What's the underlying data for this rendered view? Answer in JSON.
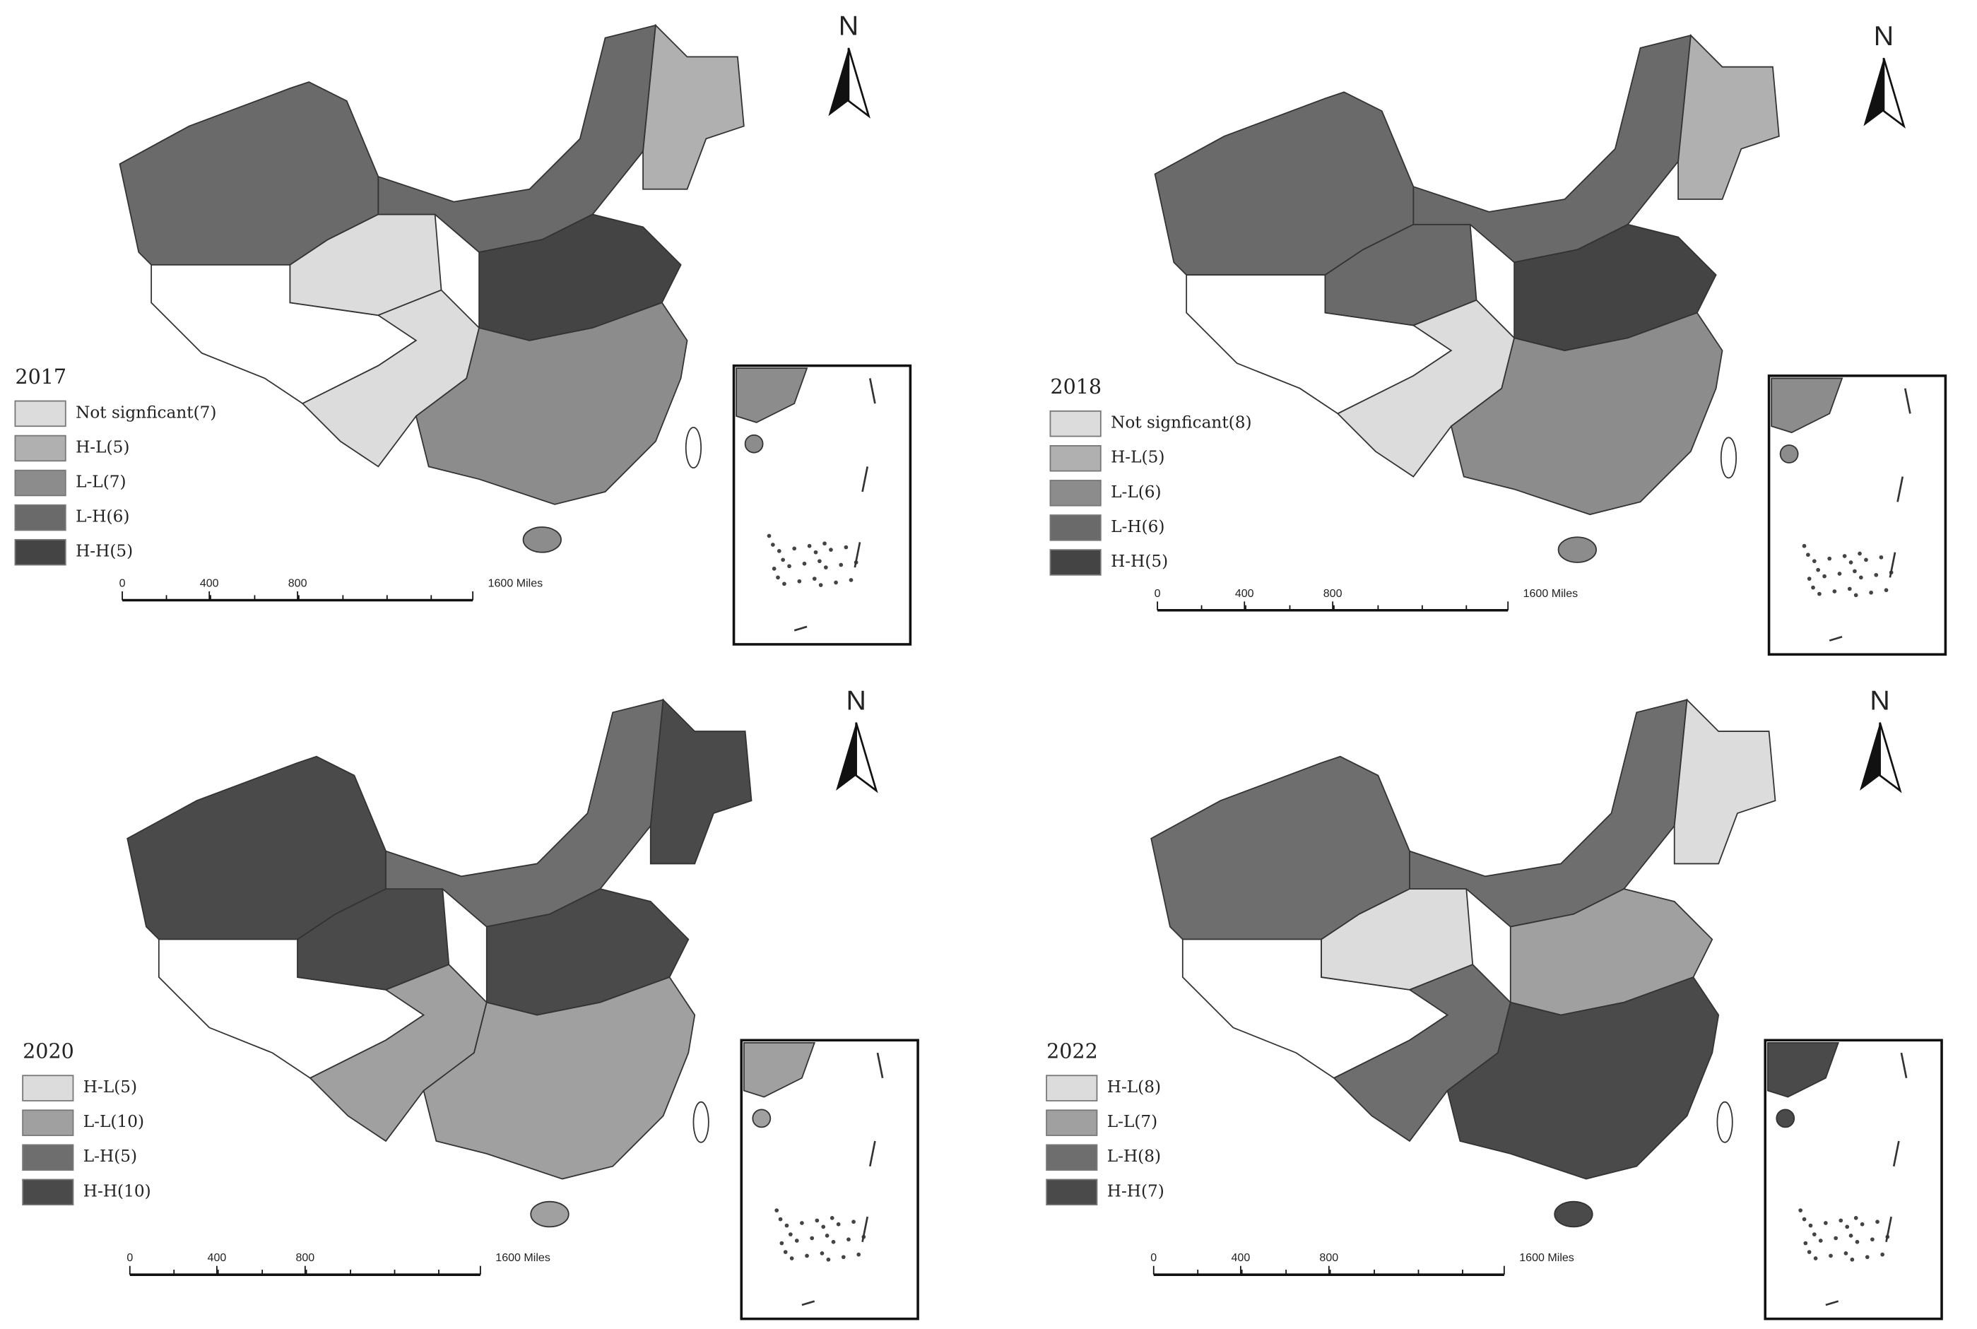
{
  "panels": [
    {
      "year": "2017",
      "north": "N",
      "scale": [
        "0",
        "400",
        "800",
        "1600 Miles"
      ],
      "legend": [
        {
          "label": "Not signficant(7)",
          "color": "#dcdcdc"
        },
        {
          "label": "H-L(5)",
          "color": "#b0b0b0"
        },
        {
          "label": "L-L(7)",
          "color": "#8c8c8c"
        },
        {
          "label": "L-H(6)",
          "color": "#6a6a6a"
        },
        {
          "label": "H-H(5)",
          "color": "#444444"
        }
      ]
    },
    {
      "year": "2018",
      "north": "N",
      "scale": [
        "0",
        "400",
        "800",
        "1600 Miles"
      ],
      "legend": [
        {
          "label": "Not signficant(8)",
          "color": "#dcdcdc"
        },
        {
          "label": "H-L(5)",
          "color": "#b0b0b0"
        },
        {
          "label": "L-L(6)",
          "color": "#8c8c8c"
        },
        {
          "label": "L-H(6)",
          "color": "#6a6a6a"
        },
        {
          "label": "H-H(5)",
          "color": "#444444"
        }
      ]
    },
    {
      "year": "2020",
      "north": "N",
      "scale": [
        "0",
        "400",
        "800",
        "1600 Miles"
      ],
      "legend": [
        {
          "label": "H-L(5)",
          "color": "#dcdcdc"
        },
        {
          "label": "L-L(10)",
          "color": "#a0a0a0"
        },
        {
          "label": "L-H(5)",
          "color": "#6e6e6e"
        },
        {
          "label": "H-H(10)",
          "color": "#4a4a4a"
        }
      ]
    },
    {
      "year": "2022",
      "north": "N",
      "scale": [
        "0",
        "400",
        "800",
        "1600 Miles"
      ],
      "legend": [
        {
          "label": "H-L(8)",
          "color": "#dcdcdc"
        },
        {
          "label": "L-L(7)",
          "color": "#a0a0a0"
        },
        {
          "label": "L-H(8)",
          "color": "#6e6e6e"
        },
        {
          "label": "H-H(7)",
          "color": "#4a4a4a"
        }
      ]
    }
  ]
}
